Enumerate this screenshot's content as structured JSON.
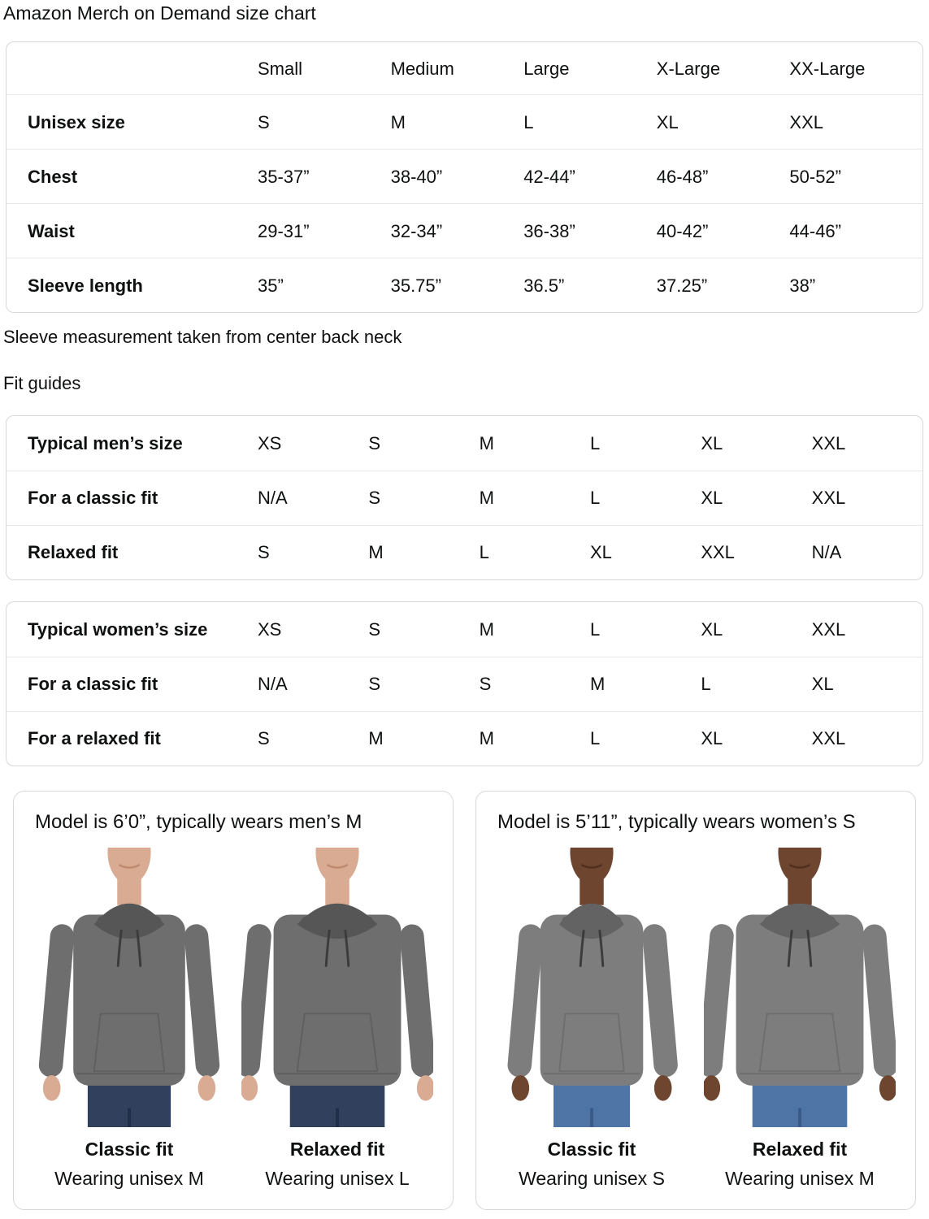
{
  "page_title": "Amazon Merch on Demand size chart",
  "size_table": {
    "columns": [
      "",
      "Small",
      "Medium",
      "Large",
      "X-Large",
      "XX-Large"
    ],
    "rows": [
      {
        "label": "Unisex size",
        "values": [
          "S",
          "M",
          "L",
          "XL",
          "XXL"
        ]
      },
      {
        "label": "Chest",
        "values": [
          "35-37”",
          "38-40”",
          "42-44”",
          "46-48”",
          "50-52”"
        ]
      },
      {
        "label": "Waist",
        "values": [
          "29-31”",
          "32-34”",
          "36-38”",
          "40-42”",
          "44-46”"
        ]
      },
      {
        "label": "Sleeve length",
        "values": [
          "35”",
          "35.75”",
          "36.5”",
          "37.25”",
          "38”"
        ]
      }
    ]
  },
  "sleeve_note": "Sleeve measurement taken from center back neck",
  "fit_guides": {
    "heading": "Fit guides",
    "mens_table": {
      "rows": [
        {
          "label": "Typical men’s size",
          "values": [
            "XS",
            "S",
            "M",
            "L",
            "XL",
            "XXL"
          ]
        },
        {
          "label": "For a classic fit",
          "values": [
            "N/A",
            "S",
            "M",
            "L",
            "XL",
            "XXL"
          ]
        },
        {
          "label": "Relaxed fit",
          "values": [
            "S",
            "M",
            "L",
            "XL",
            "XXL",
            "N/A"
          ]
        }
      ]
    },
    "womens_table": {
      "rows": [
        {
          "label": "Typical women’s size",
          "values": [
            "XS",
            "S",
            "M",
            "L",
            "XL",
            "XXL"
          ]
        },
        {
          "label": "For a classic fit",
          "values": [
            "N/A",
            "S",
            "S",
            "M",
            "L",
            "XL"
          ]
        },
        {
          "label": "For a relaxed fit",
          "values": [
            "S",
            "M",
            "M",
            "L",
            "XL",
            "XXL"
          ]
        }
      ]
    }
  },
  "model_cards": [
    {
      "title": "Model is 6’0”, typically wears men’s M",
      "model": "men",
      "figures": [
        {
          "fit_label": "Classic fit",
          "wearing_label": "Wearing unisex M",
          "variant": "classic"
        },
        {
          "fit_label": "Relaxed fit",
          "wearing_label": "Wearing unisex L",
          "variant": "relaxed"
        }
      ]
    },
    {
      "title": "Model is 5’11”, typically wears women’s S",
      "model": "women",
      "figures": [
        {
          "fit_label": "Classic fit",
          "wearing_label": "Wearing unisex S",
          "variant": "classic"
        },
        {
          "fit_label": "Relaxed fit",
          "wearing_label": "Wearing unisex M",
          "variant": "relaxed"
        }
      ]
    }
  ],
  "colors": {
    "text": "#0f1111",
    "table_border": "#d5d9d9",
    "row_divider": "#e7e9e9",
    "hoodie_men": "#6e6e6e",
    "hoodie_men_shadow": "#565656",
    "hoodie_women": "#7d7d7d",
    "hoodie_women_shadow": "#636363",
    "jeans_men": "#31405c",
    "jeans_men_seam": "#222f48",
    "jeans_women": "#4f74a6",
    "jeans_women_seam": "#3a5a88",
    "skin_men": "#d9ab92",
    "skin_men_shadow": "#b9856a",
    "skin_women": "#6e452f",
    "skin_women_shadow": "#4c2d1c",
    "drawstring": "#3c3c3c"
  }
}
